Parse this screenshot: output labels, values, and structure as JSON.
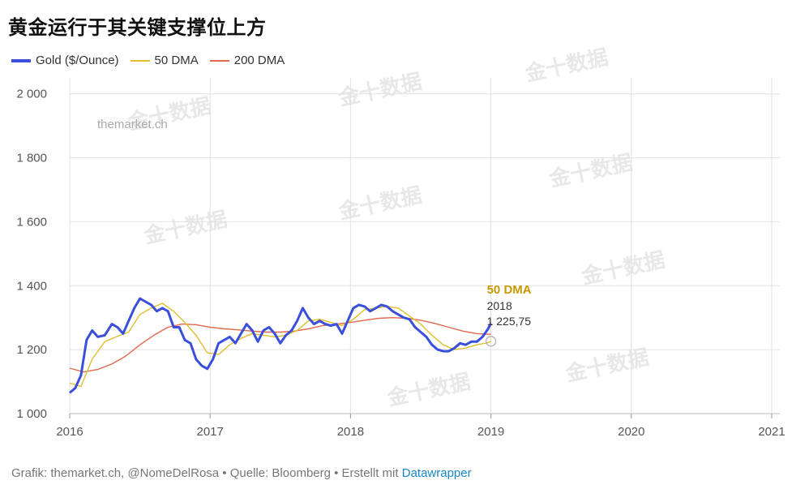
{
  "title": "黄金运行于其关键支撑位上方",
  "watermark_site": "themarket.ch",
  "watermark_brand": "金十数据",
  "footer": {
    "text": "Grafik: themarket.ch, @NomeDelRosa • Quelle: Bloomberg • Erstellt mit ",
    "link": "Datawrapper"
  },
  "colors": {
    "gold": "#3a4fdb",
    "dma50": "#e0be2e",
    "dma200": "#e0694e",
    "annotation": "#c89a00",
    "grid": "#e2e2e2"
  },
  "chart_data": {
    "type": "line",
    "xlim": [
      2016,
      2021
    ],
    "ylim": [
      1000,
      2050
    ],
    "x_ticks": [
      "2016",
      "2017",
      "2018",
      "2019",
      "2020",
      "2021"
    ],
    "y_ticks": [
      "1 000",
      "1 200",
      "1 400",
      "1 600",
      "1 800",
      "2 000"
    ],
    "grid": true,
    "legend": "top-left",
    "series": [
      {
        "name": "Gold ($/Ounce)",
        "color": "#3a4fdb",
        "x": [
          2016.0,
          2016.04,
          2016.08,
          2016.12,
          2016.16,
          2016.2,
          2016.25,
          2016.3,
          2016.34,
          2016.38,
          2016.42,
          2016.46,
          2016.5,
          2016.54,
          2016.58,
          2016.62,
          2016.66,
          2016.7,
          2016.74,
          2016.78,
          2016.82,
          2016.86,
          2016.9,
          2016.94,
          2016.98,
          2017.02,
          2017.06,
          2017.1,
          2017.14,
          2017.18,
          2017.22,
          2017.26,
          2017.3,
          2017.34,
          2017.38,
          2017.42,
          2017.46,
          2017.5,
          2017.54,
          2017.58,
          2017.62,
          2017.66,
          2017.7,
          2017.74,
          2017.78,
          2017.82,
          2017.86,
          2017.9,
          2017.94,
          2017.98,
          2018.02,
          2018.06,
          2018.1,
          2018.14,
          2018.18,
          2018.22,
          2018.26,
          2018.3,
          2018.34,
          2018.38,
          2018.42,
          2018.46,
          2018.5,
          2018.54,
          2018.58,
          2018.62,
          2018.66,
          2018.7,
          2018.74,
          2018.78,
          2018.82,
          2018.86,
          2018.9,
          2018.94,
          2018.98,
          2019.0
        ],
        "values": [
          1065,
          1080,
          1120,
          1230,
          1260,
          1240,
          1245,
          1280,
          1270,
          1250,
          1290,
          1330,
          1360,
          1350,
          1340,
          1320,
          1330,
          1320,
          1270,
          1270,
          1230,
          1220,
          1170,
          1150,
          1140,
          1170,
          1220,
          1230,
          1240,
          1220,
          1250,
          1280,
          1260,
          1225,
          1260,
          1270,
          1250,
          1220,
          1245,
          1260,
          1290,
          1330,
          1300,
          1280,
          1290,
          1280,
          1275,
          1280,
          1250,
          1290,
          1330,
          1340,
          1335,
          1320,
          1330,
          1340,
          1335,
          1320,
          1310,
          1300,
          1295,
          1270,
          1255,
          1240,
          1215,
          1200,
          1195,
          1195,
          1205,
          1220,
          1215,
          1225,
          1225,
          1240,
          1265,
          1282
        ]
      },
      {
        "name": "50 DMA",
        "color": "#e0be2e",
        "x": [
          2016.0,
          2016.08,
          2016.16,
          2016.25,
          2016.33,
          2016.42,
          2016.5,
          2016.58,
          2016.66,
          2016.74,
          2016.82,
          2016.9,
          2016.98,
          2017.06,
          2017.14,
          2017.22,
          2017.3,
          2017.38,
          2017.46,
          2017.54,
          2017.62,
          2017.7,
          2017.78,
          2017.86,
          2017.94,
          2018.02,
          2018.1,
          2018.18,
          2018.26,
          2018.34,
          2018.42,
          2018.5,
          2018.58,
          2018.66,
          2018.74,
          2018.82,
          2018.9,
          2018.98,
          2019.0
        ],
        "values": [
          1095,
          1085,
          1170,
          1225,
          1240,
          1255,
          1310,
          1330,
          1345,
          1320,
          1285,
          1245,
          1190,
          1185,
          1215,
          1235,
          1250,
          1245,
          1240,
          1245,
          1260,
          1290,
          1295,
          1285,
          1275,
          1295,
          1325,
          1330,
          1335,
          1330,
          1305,
          1280,
          1245,
          1215,
          1200,
          1205,
          1215,
          1222,
          1226
        ]
      },
      {
        "name": "200 DMA",
        "color": "#e0694e",
        "x": [
          2016.0,
          2016.1,
          2016.2,
          2016.3,
          2016.4,
          2016.5,
          2016.6,
          2016.7,
          2016.8,
          2016.9,
          2017.0,
          2017.1,
          2017.2,
          2017.3,
          2017.4,
          2017.5,
          2017.6,
          2017.7,
          2017.8,
          2017.9,
          2018.0,
          2018.1,
          2018.2,
          2018.3,
          2018.4,
          2018.5,
          2018.6,
          2018.7,
          2018.8,
          2018.9,
          2019.0
        ],
        "values": [
          1142,
          1130,
          1138,
          1155,
          1180,
          1215,
          1245,
          1270,
          1280,
          1278,
          1270,
          1265,
          1262,
          1258,
          1255,
          1255,
          1258,
          1265,
          1275,
          1280,
          1285,
          1292,
          1298,
          1300,
          1298,
          1292,
          1282,
          1270,
          1258,
          1250,
          1248
        ]
      }
    ],
    "annotation": {
      "label": "50 DMA",
      "x_label": "2018",
      "value_label": "1 225,75",
      "x": 2019.0,
      "y": 1226
    }
  }
}
